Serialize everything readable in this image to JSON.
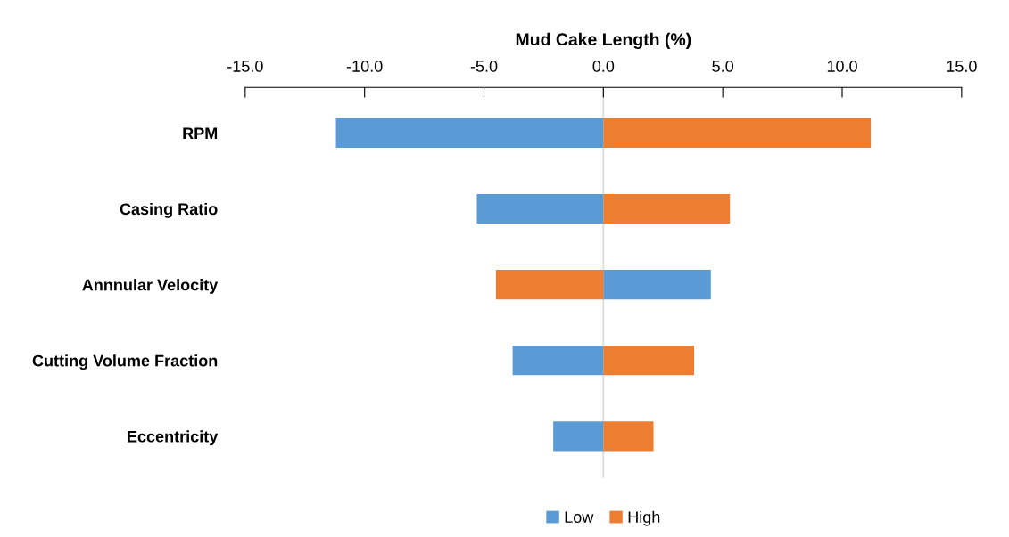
{
  "chart_data": {
    "type": "bar",
    "orientation": "horizontal",
    "stacked": true,
    "xlabel": "Mud Cake Length (%)",
    "categories": [
      "RPM",
      "Casing Ratio",
      "Annnular Velocity",
      "Cutting Volume Fraction",
      "Eccentricity"
    ],
    "series": [
      {
        "name": "Low",
        "color": "#5b9bd5",
        "values": [
          -11.2,
          -5.3,
          4.5,
          -3.8,
          -2.1
        ]
      },
      {
        "name": "High",
        "color": "#ed7d31",
        "values": [
          11.2,
          5.3,
          -4.5,
          3.8,
          2.1
        ]
      }
    ],
    "xlim": [
      -15,
      15
    ],
    "xticks": [
      {
        "value": -15,
        "label": "-15.0"
      },
      {
        "value": -10,
        "label": "-10.0"
      },
      {
        "value": -5,
        "label": "-5.0"
      },
      {
        "value": 0,
        "label": "0.0"
      },
      {
        "value": 5,
        "label": "5.0"
      },
      {
        "value": 10,
        "label": "10.0"
      },
      {
        "value": 15,
        "label": "15.0"
      }
    ],
    "ref_lines": [
      {
        "axis": "x",
        "value": 0,
        "color": "#d9d9d9"
      }
    ],
    "legend": "bottom",
    "grid": false
  }
}
